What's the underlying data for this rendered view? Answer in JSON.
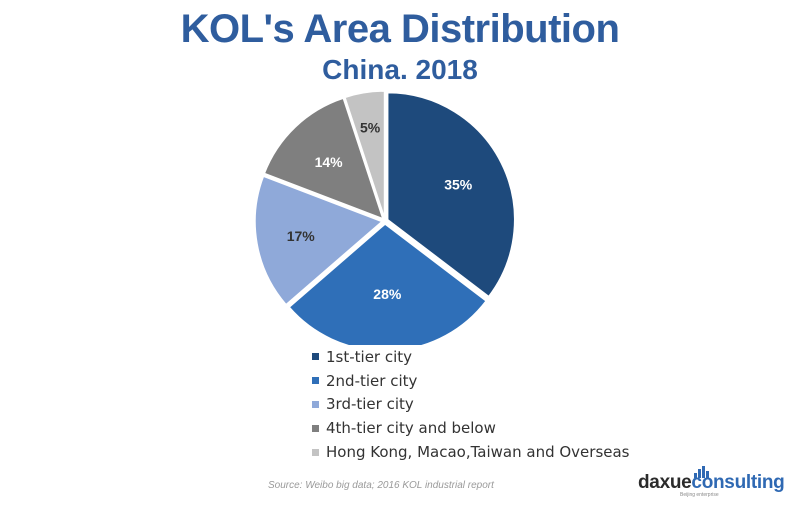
{
  "title": "KOL's Area Distribution",
  "subtitle": "China. 2018",
  "colors": {
    "title": "#2f5d9e",
    "slices": [
      "#1e4a7c",
      "#2f6fb8",
      "#8fa9d9",
      "#7f7f7f",
      "#c3c3c3"
    ],
    "brand_accent": "#2f69b3"
  },
  "chart_data": {
    "type": "pie",
    "title": "KOL's Area Distribution",
    "subtitle": "China. 2018",
    "categories": [
      "1st-tier city",
      "2nd-tier city",
      "3rd-tier city",
      "4th-tier city and below",
      "Hong Kong, Macao,Taiwan and Overseas"
    ],
    "values": [
      35,
      28,
      17,
      14,
      5
    ],
    "labels": [
      "35%",
      "28%",
      "17%",
      "14%",
      "5%"
    ],
    "start_angle": "12 o'clock",
    "direction": "clockwise",
    "legend_position": "bottom"
  },
  "source": "Source: Weibo big data; 2016 KOL industrial report",
  "brand": {
    "part1": "daxue",
    "part2": "consulting",
    "tagline": "Beijing enterprise"
  }
}
